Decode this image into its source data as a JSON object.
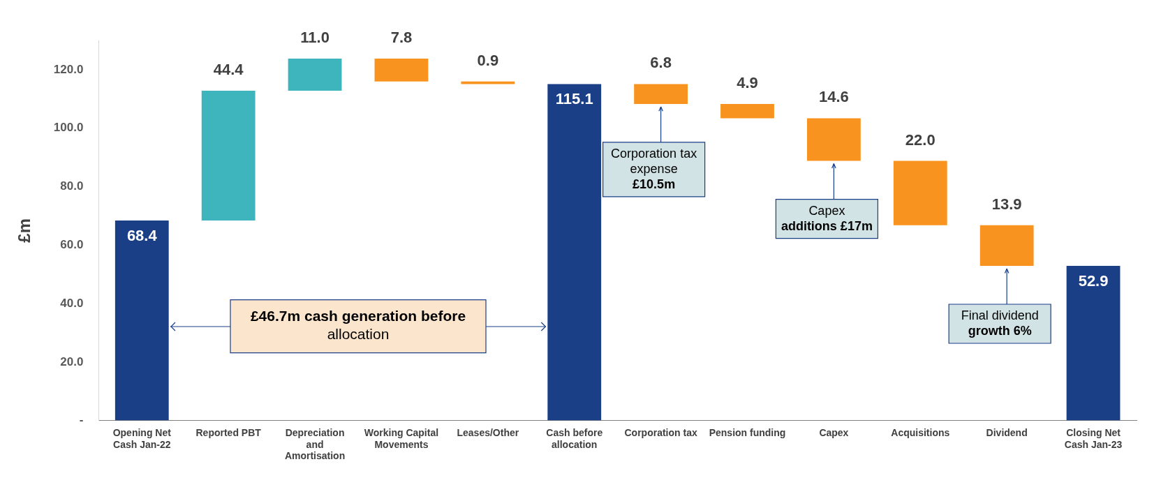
{
  "chart_data": {
    "type": "bar",
    "ylabel": "£m",
    "categories": [
      "Opening Net Cash Jan-22",
      "Reported PBT",
      "Depreciation and Amortisation",
      "Working Capital Movements",
      "Leases/Other",
      "Cash before allocation",
      "Corporation tax",
      "Pension funding",
      "Capex",
      "Acquisitions",
      "Dividend",
      "Closing Net Cash Jan-23"
    ],
    "values": [
      68.4,
      44.4,
      11.0,
      7.8,
      0.9,
      115.1,
      6.8,
      4.9,
      14.6,
      22.0,
      13.9,
      52.9
    ],
    "base": [
      0,
      68.4,
      112.8,
      116.0,
      115.1,
      0,
      108.3,
      103.4,
      88.8,
      66.8,
      52.9,
      0
    ],
    "colors": [
      "#1a3f87",
      "#3eb5bd",
      "#3eb5bd",
      "#f7931e",
      "#f7931e",
      "#1a3f87",
      "#f7931e",
      "#f7931e",
      "#f7931e",
      "#f7931e",
      "#f7931e",
      "#1a3f87"
    ],
    "value_labels": [
      "68.4",
      "44.4",
      "11.0",
      "7.8",
      "0.9",
      "115.1",
      "6.8",
      "4.9",
      "14.6",
      "22.0",
      "13.9",
      "52.9"
    ],
    "ylim": [
      0,
      130
    ],
    "yticks": [
      {
        "value": 0,
        "label": "-"
      },
      {
        "value": 20,
        "label": "20.0"
      },
      {
        "value": 40,
        "label": "40.0"
      },
      {
        "value": 60,
        "label": "60.0"
      },
      {
        "value": 80,
        "label": "80.0"
      },
      {
        "value": 100,
        "label": "100.0"
      },
      {
        "value": 120,
        "label": "120.0"
      }
    ],
    "grid": false,
    "legend": false,
    "annotations": [
      "£46.7m cash generation before allocation",
      {
        "text": "Corporation tax expense £10.5m",
        "x": "Corporation tax",
        "y": 108.3
      },
      {
        "text": "Capex additions £17m",
        "x": "Capex",
        "y": 88.8
      },
      {
        "text": "Final dividend growth 6%",
        "x": "Dividend",
        "y": 52.9
      }
    ]
  }
}
